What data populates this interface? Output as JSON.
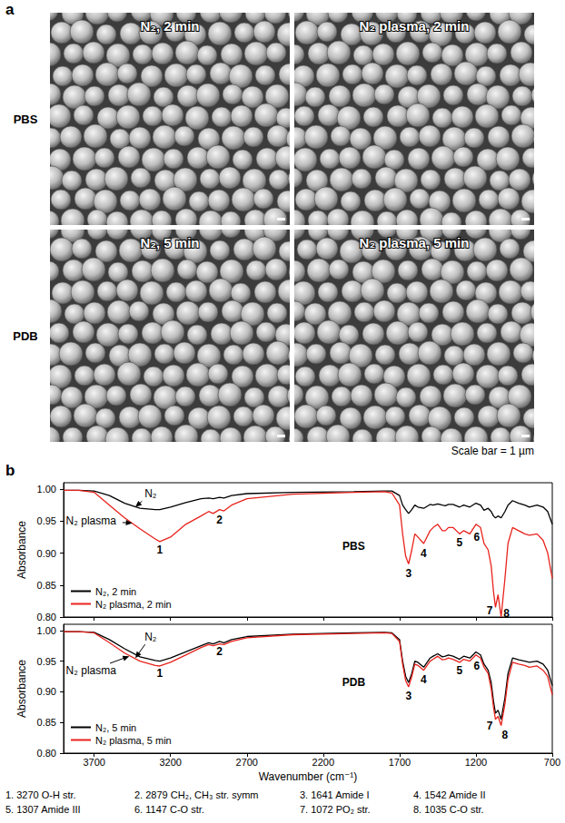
{
  "panel_a": {
    "label": "a",
    "rows": [
      "PBS",
      "PDB"
    ],
    "panels": [
      [
        "N₂, 2 min",
        "N₂ plasma, 2 min"
      ],
      [
        "N₂, 5 min",
        "N₂ plasma, 5 min"
      ]
    ],
    "scale_bar": "Scale bar = 1 µm"
  },
  "panel_b": {
    "label": "b",
    "footnote": [
      "1. 3270 O-H str.",
      "2. 2879 CH₂, CH₃ str. symm",
      "3. 1641 Amide I",
      "4. 1542 Amide II",
      "5. 1307 Amide III",
      "6. 1147 C-O str.",
      "7. 1072 PO₂ str.",
      "8. 1035 C-O str."
    ]
  },
  "chart_data": [
    {
      "type": "line",
      "y_label": "Absorbance",
      "x": [
        3900,
        3800,
        3700,
        3600,
        3500,
        3400,
        3300,
        3270,
        3200,
        3100,
        3000,
        2950,
        2920,
        2879,
        2850,
        2800,
        2700,
        2400,
        2000,
        1800,
        1750,
        1700,
        1680,
        1660,
        1641,
        1620,
        1600,
        1580,
        1542,
        1500,
        1480,
        1450,
        1420,
        1400,
        1380,
        1350,
        1307,
        1280,
        1240,
        1200,
        1170,
        1147,
        1120,
        1100,
        1085,
        1072,
        1055,
        1035,
        1010,
        990,
        960,
        920,
        880,
        850,
        800,
        760,
        730,
        700
      ],
      "series": [
        {
          "name": "N₂, 2 min",
          "color": "#000000",
          "values": [
            0.998,
            0.998,
            0.997,
            0.99,
            0.978,
            0.97,
            0.968,
            0.968,
            0.972,
            0.979,
            0.985,
            0.986,
            0.985,
            0.987,
            0.986,
            0.99,
            0.993,
            0.995,
            0.996,
            0.997,
            0.997,
            0.99,
            0.975,
            0.968,
            0.962,
            0.968,
            0.975,
            0.972,
            0.97,
            0.976,
            0.975,
            0.977,
            0.975,
            0.974,
            0.976,
            0.976,
            0.972,
            0.975,
            0.972,
            0.978,
            0.975,
            0.967,
            0.97,
            0.965,
            0.958,
            0.955,
            0.958,
            0.955,
            0.965,
            0.975,
            0.982,
            0.978,
            0.975,
            0.972,
            0.975,
            0.972,
            0.965,
            0.945
          ]
        },
        {
          "name": "N₂ plasma, 2 min",
          "color": "#e8221c",
          "values": [
            0.998,
            0.998,
            0.995,
            0.975,
            0.955,
            0.938,
            0.922,
            0.918,
            0.925,
            0.945,
            0.958,
            0.965,
            0.962,
            0.968,
            0.966,
            0.975,
            0.985,
            0.992,
            0.995,
            0.996,
            0.994,
            0.975,
            0.93,
            0.895,
            0.883,
            0.905,
            0.93,
            0.925,
            0.915,
            0.935,
            0.94,
            0.945,
            0.935,
            0.935,
            0.94,
            0.94,
            0.93,
            0.935,
            0.93,
            0.945,
            0.94,
            0.915,
            0.905,
            0.88,
            0.84,
            0.815,
            0.835,
            0.8,
            0.86,
            0.915,
            0.94,
            0.935,
            0.93,
            0.928,
            0.93,
            0.92,
            0.9,
            0.86
          ]
        }
      ],
      "xlim": [
        3900,
        700
      ],
      "xticks": [
        3700,
        3200,
        2700,
        2200,
        1700,
        1200,
        700
      ],
      "ylim": [
        0.8,
        1.01
      ],
      "yticks": [
        {
          "value": 0.8,
          "label": "0.80"
        },
        {
          "value": 0.85,
          "label": "0.85"
        },
        {
          "value": 0.9,
          "label": "0.90"
        },
        {
          "value": 0.95,
          "label": "0.95"
        },
        {
          "value": 1.0,
          "label": "1.00"
        }
      ],
      "tick_labels": "y",
      "grid": false,
      "legend": "lower left",
      "annotations": [
        {
          "text": "PBS",
          "x": 2000,
          "y": 0.91
        },
        {
          "text": "N₂",
          "x": 3330,
          "y": 0.993,
          "arrow_to": [
            3430,
            0.972
          ]
        },
        {
          "text": "N₂ plasma",
          "x": 3720,
          "y": 0.95,
          "arrow_to": [
            3450,
            0.947
          ]
        },
        {
          "text": "1",
          "x": 3270,
          "y": 0.905
        },
        {
          "text": "2",
          "x": 2879,
          "y": 0.952
        },
        {
          "text": "3",
          "x": 1641,
          "y": 0.868
        },
        {
          "text": "4",
          "x": 1542,
          "y": 0.9
        },
        {
          "text": "5",
          "x": 1307,
          "y": 0.917
        },
        {
          "text": "6",
          "x": 1195,
          "y": 0.925
        },
        {
          "text": "7",
          "x": 1110,
          "y": 0.81
        },
        {
          "text": "8",
          "x": 1000,
          "y": 0.805
        }
      ]
    },
    {
      "type": "line",
      "x_label": "Wavenumber (cm⁻¹)",
      "y_label": "Absorbance",
      "x": [
        3900,
        3800,
        3700,
        3600,
        3500,
        3400,
        3300,
        3270,
        3200,
        3100,
        3000,
        2950,
        2920,
        2879,
        2850,
        2800,
        2700,
        2400,
        2000,
        1800,
        1750,
        1700,
        1680,
        1660,
        1641,
        1620,
        1600,
        1580,
        1542,
        1500,
        1480,
        1450,
        1420,
        1400,
        1380,
        1350,
        1307,
        1280,
        1240,
        1200,
        1170,
        1147,
        1120,
        1100,
        1085,
        1072,
        1055,
        1035,
        1010,
        990,
        960,
        920,
        880,
        850,
        800,
        760,
        730,
        700
      ],
      "series": [
        {
          "name": "N₂, 5 min",
          "color": "#000000",
          "values": [
            0.998,
            0.998,
            0.997,
            0.985,
            0.97,
            0.957,
            0.951,
            0.95,
            0.955,
            0.965,
            0.975,
            0.98,
            0.978,
            0.982,
            0.98,
            0.985,
            0.99,
            0.994,
            0.996,
            0.997,
            0.996,
            0.985,
            0.95,
            0.925,
            0.915,
            0.93,
            0.95,
            0.948,
            0.94,
            0.955,
            0.958,
            0.962,
            0.957,
            0.958,
            0.96,
            0.958,
            0.953,
            0.958,
            0.955,
            0.965,
            0.96,
            0.945,
            0.935,
            0.915,
            0.885,
            0.865,
            0.87,
            0.855,
            0.89,
            0.93,
            0.955,
            0.952,
            0.95,
            0.948,
            0.95,
            0.945,
            0.935,
            0.91
          ]
        },
        {
          "name": "N₂ plasma, 5 min",
          "color": "#e8221c",
          "values": [
            0.998,
            0.998,
            0.996,
            0.98,
            0.963,
            0.95,
            0.943,
            0.942,
            0.948,
            0.96,
            0.972,
            0.977,
            0.975,
            0.978,
            0.977,
            0.982,
            0.988,
            0.993,
            0.995,
            0.996,
            0.995,
            0.982,
            0.945,
            0.918,
            0.908,
            0.925,
            0.945,
            0.943,
            0.935,
            0.95,
            0.953,
            0.958,
            0.952,
            0.953,
            0.955,
            0.953,
            0.948,
            0.953,
            0.95,
            0.96,
            0.955,
            0.94,
            0.93,
            0.905,
            0.875,
            0.855,
            0.86,
            0.845,
            0.88,
            0.92,
            0.948,
            0.945,
            0.943,
            0.94,
            0.942,
            0.935,
            0.925,
            0.895
          ]
        }
      ],
      "xlim": [
        3900,
        700
      ],
      "xticks": [
        3700,
        3200,
        2700,
        2200,
        1700,
        1200,
        700
      ],
      "ylim": [
        0.8,
        1.01
      ],
      "yticks": [
        {
          "value": 0.8,
          "label": "0.80"
        },
        {
          "value": 0.85,
          "label": "0.85"
        },
        {
          "value": 0.9,
          "label": "0.90"
        },
        {
          "value": 0.95,
          "label": "0.95"
        },
        {
          "value": 1.0,
          "label": "1.00"
        }
      ],
      "grid": false,
      "legend": "lower left",
      "annotations": [
        {
          "text": "PDB",
          "x": 2000,
          "y": 0.915
        },
        {
          "text": "N₂",
          "x": 3330,
          "y": 0.99,
          "arrow_to": [
            3430,
            0.955
          ]
        },
        {
          "text": "N₂ plasma",
          "x": 3720,
          "y": 0.935,
          "arrow_to": [
            3470,
            0.958
          ]
        },
        {
          "text": "1",
          "x": 3270,
          "y": 0.93
        },
        {
          "text": "2",
          "x": 2879,
          "y": 0.965
        },
        {
          "text": "3",
          "x": 1641,
          "y": 0.893
        },
        {
          "text": "4",
          "x": 1542,
          "y": 0.92
        },
        {
          "text": "5",
          "x": 1307,
          "y": 0.935
        },
        {
          "text": "6",
          "x": 1195,
          "y": 0.942
        },
        {
          "text": "7",
          "x": 1110,
          "y": 0.845
        },
        {
          "text": "8",
          "x": 1010,
          "y": 0.83
        }
      ]
    }
  ]
}
